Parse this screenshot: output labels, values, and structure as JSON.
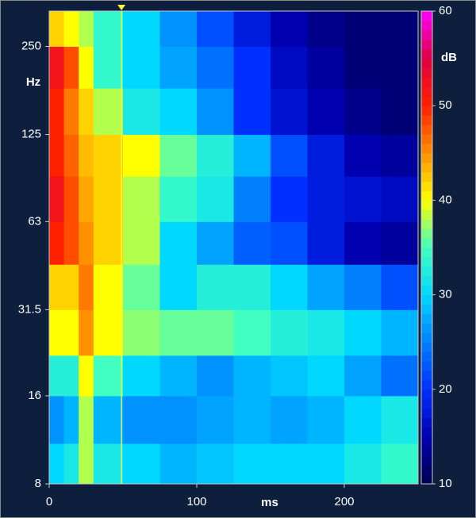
{
  "chart_data": {
    "type": "heatmap",
    "x_label": "ms",
    "y_label": "Hz",
    "colorbar_label": "dB",
    "xlim": [
      0,
      250
    ],
    "xticks": [
      0,
      100,
      200
    ],
    "ylim": [
      8,
      330
    ],
    "yticks": [
      8,
      16,
      31.5,
      63,
      125,
      250
    ],
    "y_scale": "log",
    "zlim": [
      10,
      60
    ],
    "zticks": [
      10,
      20,
      30,
      40,
      50,
      60
    ],
    "colormap": [
      "#000050",
      "#0000b0",
      "#0030ff",
      "#0080ff",
      "#00d8ff",
      "#40ffc0",
      "#ffff00",
      "#ff9000",
      "#ff2000",
      "#e00040",
      "#ff00ff"
    ],
    "cursor_x": 49,
    "cursor_color": "#ffff40",
    "x_bins": [
      0,
      10,
      20,
      30,
      50,
      75,
      100,
      125,
      150,
      175,
      200,
      225,
      250
    ],
    "y_bins": [
      8,
      11,
      16,
      22,
      31.5,
      45,
      63,
      90,
      125,
      180,
      250,
      330
    ],
    "z": [
      [
        30,
        32,
        38,
        32,
        30,
        28,
        29,
        30,
        30,
        30,
        32,
        34
      ],
      [
        26,
        28,
        38,
        28,
        26,
        26,
        27,
        28,
        27,
        28,
        30,
        32
      ],
      [
        33,
        33,
        40,
        35,
        30,
        28,
        26,
        28,
        29,
        30,
        27,
        24
      ],
      [
        40,
        40,
        45,
        40,
        37,
        36,
        36,
        35,
        33,
        32,
        30,
        28
      ],
      [
        42,
        42,
        46,
        40,
        36,
        30,
        33,
        33,
        30,
        27,
        25,
        22
      ],
      [
        50,
        48,
        45,
        42,
        38,
        30,
        27,
        23,
        22,
        18,
        15,
        14
      ],
      [
        52,
        48,
        44,
        42,
        38,
        34,
        32,
        25,
        20,
        18,
        17,
        16
      ],
      [
        50,
        47,
        43,
        42,
        40,
        36,
        33,
        28,
        22,
        18,
        15,
        14
      ],
      [
        50,
        46,
        42,
        38,
        32,
        30,
        26,
        20,
        17,
        15,
        13,
        12
      ],
      [
        52,
        48,
        40,
        34,
        30,
        27,
        24,
        20,
        16,
        14,
        12,
        12
      ],
      [
        42,
        40,
        38,
        34,
        30,
        26,
        22,
        18,
        15,
        13,
        12,
        12
      ]
    ]
  }
}
